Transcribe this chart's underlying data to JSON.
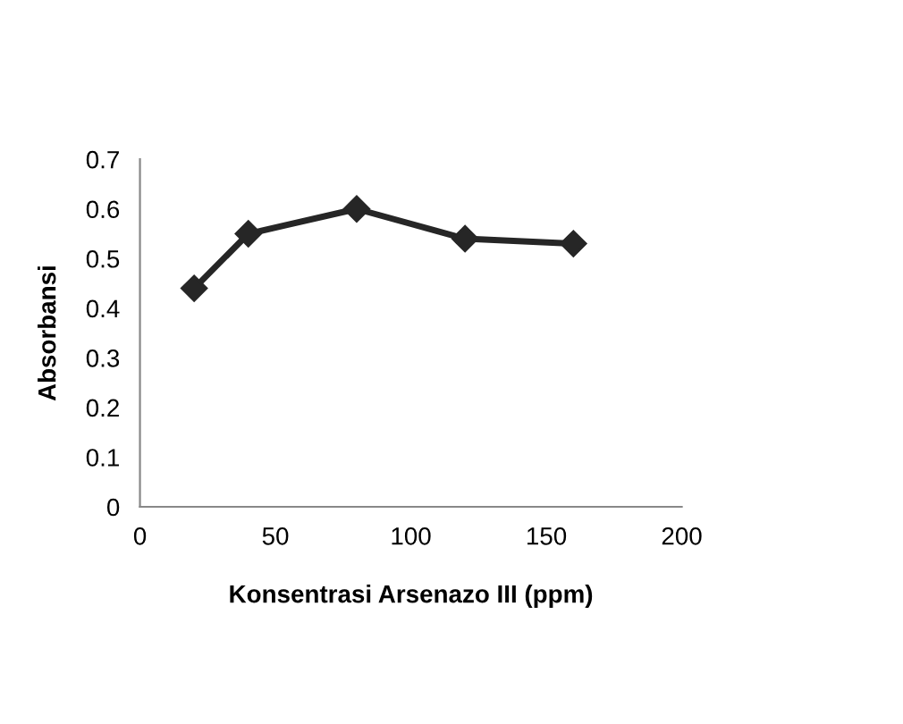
{
  "chart_data": {
    "type": "line",
    "xlabel": "Konsentrasi Arsenazo III (ppm)",
    "ylabel": "Absorbansi",
    "x": [
      20,
      40,
      80,
      120,
      160
    ],
    "series": [
      {
        "color": "#262626",
        "values": [
          0.44,
          0.55,
          0.6,
          0.54,
          0.53
        ]
      }
    ],
    "xlim": [
      0,
      200
    ],
    "xticks": [
      0,
      50,
      100,
      150,
      200
    ],
    "ylim": [
      0,
      0.7
    ],
    "yticks": [
      {
        "value": 0,
        "label": "0"
      },
      0.1,
      0.2,
      0.3,
      0.4,
      0.5,
      0.6,
      0.7
    ],
    "grid": false,
    "legend": false,
    "marker": "diamond",
    "line_style": "solid"
  }
}
